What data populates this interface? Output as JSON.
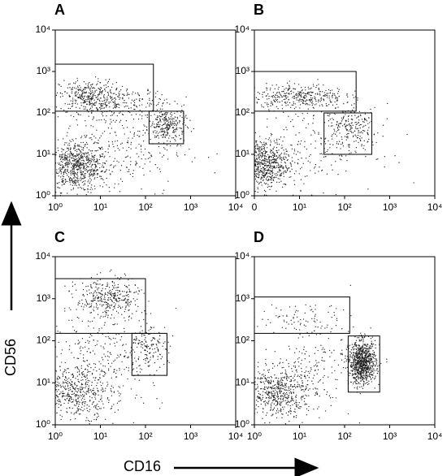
{
  "axis_labels": {
    "y": "CD56",
    "x": "CD16"
  },
  "chart_data": [
    {
      "type": "scatter",
      "panel_label": "A",
      "xscale": "log",
      "yscale": "log",
      "xlim": [
        1,
        10000
      ],
      "ylim": [
        1,
        10000
      ],
      "xticks": [
        {
          "value": 1,
          "label": "10⁰"
        },
        {
          "value": 10,
          "label": "10¹"
        },
        {
          "value": 100,
          "label": "10²"
        },
        {
          "value": 1000,
          "label": "10³"
        },
        {
          "value": 10000,
          "label": "10⁴"
        }
      ],
      "yticks": [
        {
          "value": 1,
          "label": "10⁰"
        },
        {
          "value": 10,
          "label": "10¹"
        },
        {
          "value": 100,
          "label": "10²"
        },
        {
          "value": 1000,
          "label": "10³"
        },
        {
          "value": 10000,
          "label": "10⁴"
        }
      ],
      "gates": [
        {
          "x": [
            1,
            150
          ],
          "y": [
            110,
            1500
          ]
        },
        {
          "x": [
            120,
            700
          ],
          "y": [
            18,
            110
          ]
        }
      ],
      "populations": [
        {
          "x": 3,
          "y": 5,
          "sx": 0.35,
          "sy": 0.3,
          "n": 700
        },
        {
          "x": 5,
          "y": 250,
          "sx": 0.3,
          "sy": 0.2,
          "n": 300
        },
        {
          "x": 30,
          "y": 180,
          "sx": 0.5,
          "sy": 0.2,
          "n": 200
        },
        {
          "x": 300,
          "y": 50,
          "sx": 0.2,
          "sy": 0.2,
          "n": 250
        },
        {
          "x": 20,
          "y": 15,
          "sx": 0.8,
          "sy": 0.6,
          "n": 300
        }
      ]
    },
    {
      "type": "scatter",
      "panel_label": "B",
      "xscale": "log",
      "yscale": "log",
      "xlim": [
        1,
        10000
      ],
      "ylim": [
        1,
        10000
      ],
      "xticks": [
        {
          "value": 1,
          "label": "0"
        },
        {
          "value": 10,
          "label": "10¹"
        },
        {
          "value": 100,
          "label": "10²"
        },
        {
          "value": 1000,
          "label": "10³"
        },
        {
          "value": 10000,
          "label": "10⁴"
        }
      ],
      "yticks": [
        {
          "value": 1,
          "label": "10⁰"
        },
        {
          "value": 10,
          "label": "10¹"
        },
        {
          "value": 100,
          "label": "10²"
        },
        {
          "value": 1000,
          "label": "10³"
        },
        {
          "value": 10000,
          "label": "10⁴"
        }
      ],
      "gates": [
        {
          "x": [
            1,
            180
          ],
          "y": [
            110,
            1000
          ]
        },
        {
          "x": [
            35,
            400
          ],
          "y": [
            10,
            100
          ]
        }
      ],
      "populations": [
        {
          "x": 1.5,
          "y": 6,
          "sx": 0.3,
          "sy": 0.3,
          "n": 700
        },
        {
          "x": 10,
          "y": 250,
          "sx": 0.5,
          "sy": 0.15,
          "n": 350
        },
        {
          "x": 150,
          "y": 40,
          "sx": 0.3,
          "sy": 0.25,
          "n": 200
        },
        {
          "x": 20,
          "y": 15,
          "sx": 0.7,
          "sy": 0.5,
          "n": 200
        }
      ]
    },
    {
      "type": "scatter",
      "panel_label": "C",
      "xscale": "log",
      "yscale": "log",
      "xlim": [
        1,
        10000
      ],
      "ylim": [
        1,
        10000
      ],
      "xticks": [
        {
          "value": 1,
          "label": "10⁰"
        },
        {
          "value": 10,
          "label": "10¹"
        },
        {
          "value": 100,
          "label": "10²"
        },
        {
          "value": 1000,
          "label": "10³"
        },
        {
          "value": 10000,
          "label": "10⁴"
        }
      ],
      "yticks": [
        {
          "value": 1,
          "label": "10⁰"
        },
        {
          "value": 10,
          "label": "10¹"
        },
        {
          "value": 100,
          "label": "10²"
        },
        {
          "value": 1000,
          "label": "10³"
        },
        {
          "value": 10000,
          "label": "10⁴"
        }
      ],
      "gates": [
        {
          "x": [
            1,
            100
          ],
          "y": [
            150,
            3000
          ]
        },
        {
          "x": [
            50,
            300
          ],
          "y": [
            15,
            150
          ]
        }
      ],
      "populations": [
        {
          "x": 15,
          "y": 1000,
          "sx": 0.35,
          "sy": 0.25,
          "n": 350
        },
        {
          "x": 3,
          "y": 6,
          "sx": 0.4,
          "sy": 0.3,
          "n": 450
        },
        {
          "x": 100,
          "y": 60,
          "sx": 0.25,
          "sy": 0.25,
          "n": 150
        },
        {
          "x": 10,
          "y": 40,
          "sx": 0.7,
          "sy": 0.6,
          "n": 300
        }
      ]
    },
    {
      "type": "scatter",
      "panel_label": "D",
      "xscale": "log",
      "yscale": "log",
      "xlim": [
        1,
        10000
      ],
      "ylim": [
        1,
        10000
      ],
      "xticks": [
        {
          "value": 1,
          "label": "10⁰"
        },
        {
          "value": 10,
          "label": "10¹"
        },
        {
          "value": 100,
          "label": "10²"
        },
        {
          "value": 1000,
          "label": "10³"
        },
        {
          "value": 10000,
          "label": "10⁴"
        }
      ],
      "yticks": [
        {
          "value": 1,
          "label": "10⁰"
        },
        {
          "value": 10,
          "label": "10¹"
        },
        {
          "value": 100,
          "label": "10²"
        },
        {
          "value": 1000,
          "label": "10³"
        },
        {
          "value": 10000,
          "label": "10⁴"
        }
      ],
      "gates": [
        {
          "x": [
            1,
            130
          ],
          "y": [
            150,
            1100
          ]
        },
        {
          "x": [
            120,
            600
          ],
          "y": [
            6,
            130
          ]
        }
      ],
      "populations": [
        {
          "x": 250,
          "y": 30,
          "sx": 0.15,
          "sy": 0.25,
          "n": 900
        },
        {
          "x": 3,
          "y": 6,
          "sx": 0.35,
          "sy": 0.3,
          "n": 500
        },
        {
          "x": 15,
          "y": 15,
          "sx": 0.5,
          "sy": 0.5,
          "n": 200
        },
        {
          "x": 10,
          "y": 300,
          "sx": 0.6,
          "sy": 0.2,
          "n": 100
        }
      ]
    }
  ]
}
